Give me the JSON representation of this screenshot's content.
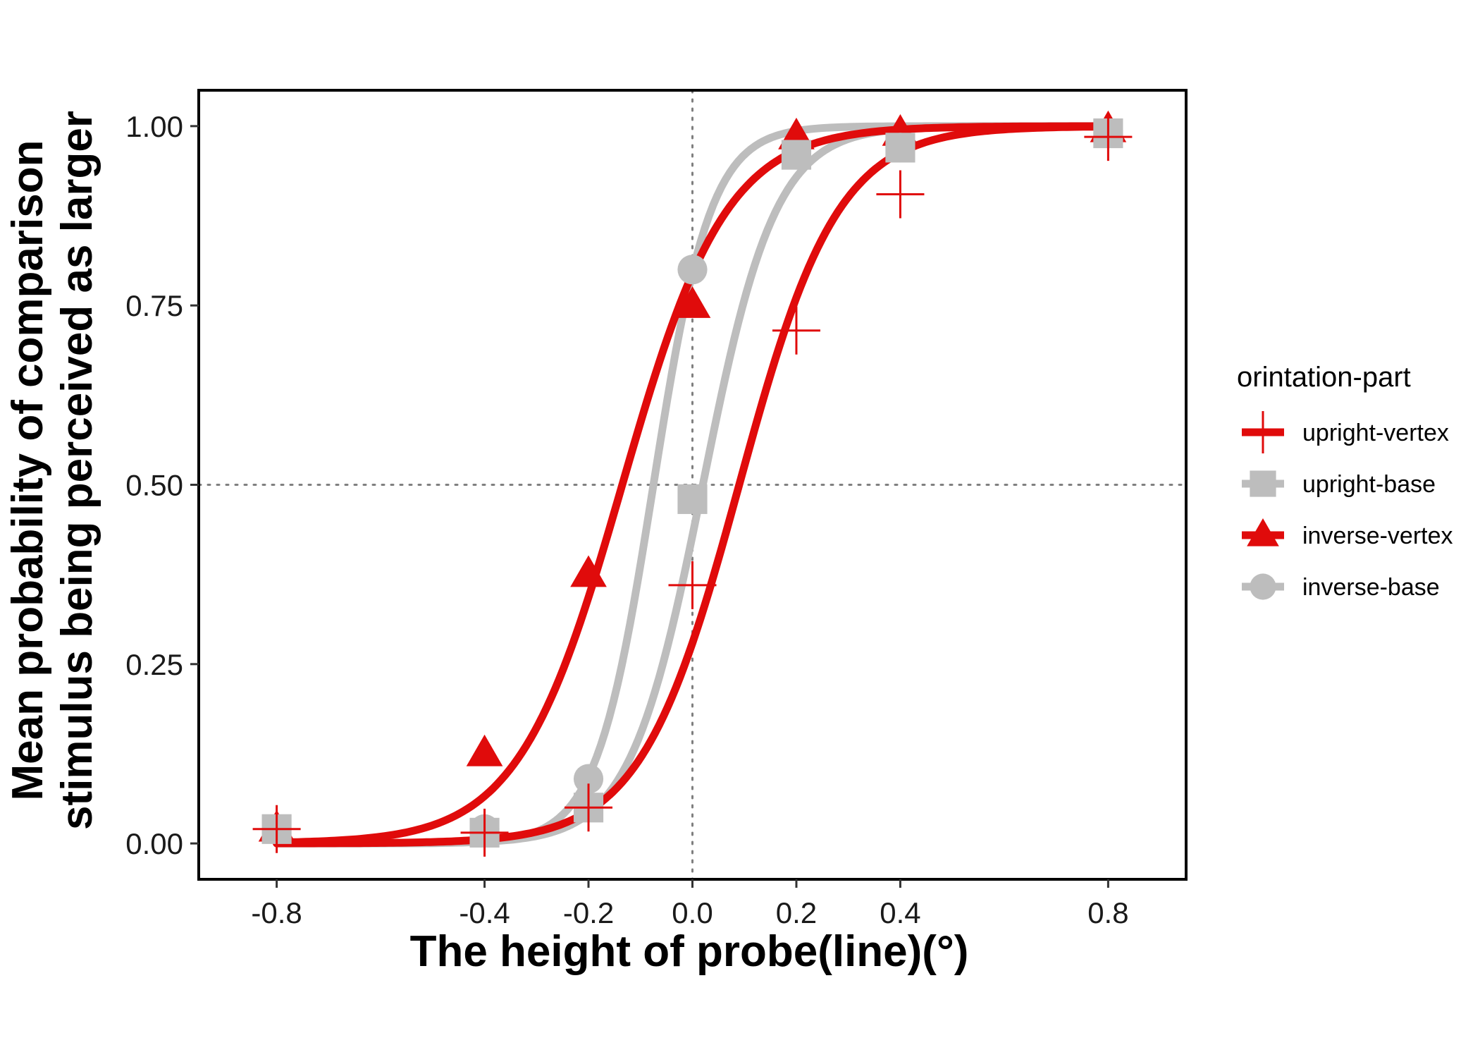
{
  "chart_data": {
    "type": "scatter",
    "title": "",
    "xlabel": "The height of probe(line)(°)",
    "ylabel_lines": [
      "Mean probability of comparison",
      "stimulus being perceived as larger"
    ],
    "xlim": [
      -0.95,
      0.95
    ],
    "ylim": [
      -0.05,
      1.05
    ],
    "x_ticks": [
      -0.8,
      -0.4,
      -0.2,
      0.0,
      0.2,
      0.4,
      0.8
    ],
    "x_tick_labels": [
      "-0.8",
      "-0.4",
      "-0.2",
      "0.0",
      "0.2",
      "0.4",
      "0.8"
    ],
    "y_ticks": [
      0.0,
      0.25,
      0.5,
      0.75,
      1.0
    ],
    "y_tick_labels": [
      "0.00",
      "0.25",
      "0.50",
      "0.75",
      "1.00"
    ],
    "reference_lines": {
      "x": 0.0,
      "y": 0.5,
      "style": "dotted"
    },
    "grid": false,
    "legend_title": "orintation-part",
    "legend_position": "right",
    "colors": {
      "red": "#e00b0b",
      "gray": "#bdbdbd"
    },
    "x": [
      -0.8,
      -0.4,
      -0.2,
      0.0,
      0.2,
      0.4,
      0.8
    ],
    "series": [
      {
        "name": "upright-vertex",
        "color": "#e00b0b",
        "marker": "cross",
        "values": [
          0.02,
          0.015,
          0.05,
          0.36,
          0.715,
          0.905,
          0.985
        ],
        "fit": {
          "mu": 0.09,
          "s": 0.095
        }
      },
      {
        "name": "upright-base",
        "color": "#bdbdbd",
        "marker": "square",
        "values": [
          0.02,
          0.015,
          0.05,
          0.48,
          0.96,
          0.97,
          0.99
        ],
        "fit": {
          "mu": 0.02,
          "s": 0.07
        }
      },
      {
        "name": "inverse-vertex",
        "color": "#e00b0b",
        "marker": "triangle",
        "values": [
          0.02,
          0.125,
          0.375,
          0.75,
          0.985,
          0.99,
          0.995
        ],
        "fit": {
          "mu": -0.135,
          "s": 0.1
        }
      },
      {
        "name": "inverse-base",
        "color": "#bdbdbd",
        "marker": "circle",
        "values": [
          0.02,
          0.02,
          0.09,
          0.8,
          0.96,
          0.97,
          0.99
        ],
        "fit": {
          "mu": -0.075,
          "s": 0.055
        }
      }
    ]
  }
}
